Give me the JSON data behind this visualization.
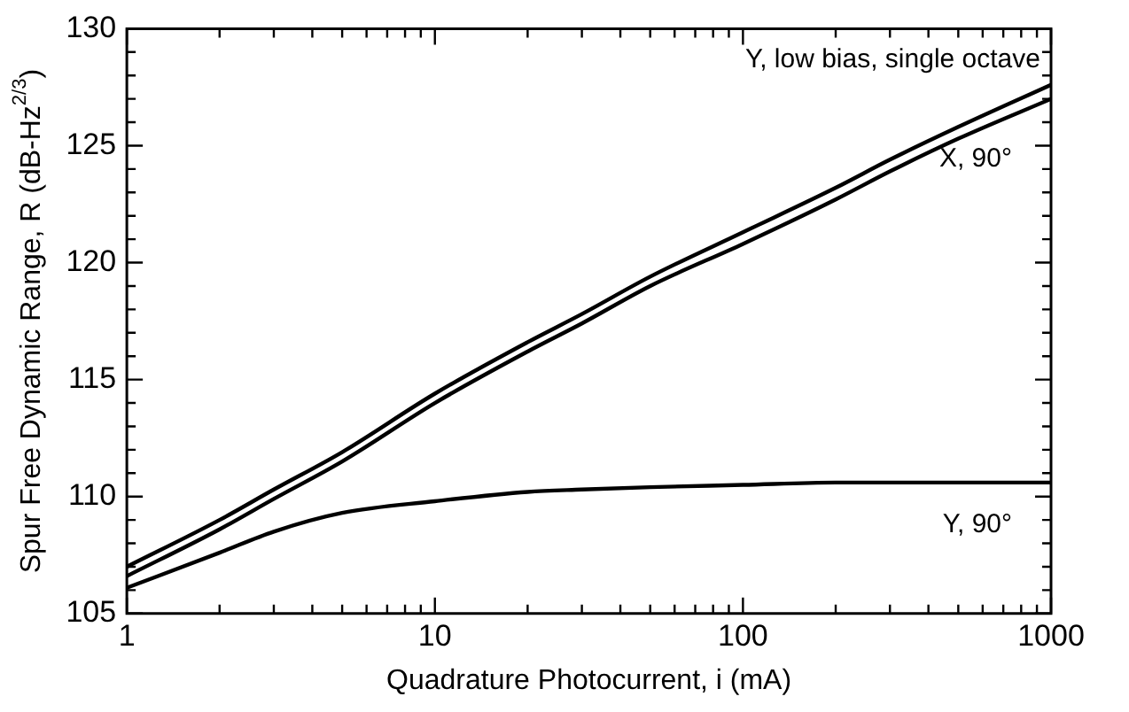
{
  "chart_data": {
    "type": "line",
    "xlabel": "Quadrature Photocurrent, i (mA)",
    "ylabel": "Spur Free Dynamic Range, R (dB-Hz$^{2/3}$)",
    "log": "x",
    "grid": false,
    "legend": "right",
    "marker": "none",
    "line_style": "solid",
    "xlim": [
      1,
      1000
    ],
    "ylim": [
      105,
      130
    ],
    "xticks": [
      1,
      {
        "value": 2,
        "label": null
      },
      {
        "value": 3,
        "label": null
      },
      {
        "value": 4,
        "label": null
      },
      {
        "value": 5,
        "label": null
      },
      {
        "value": 6,
        "label": null
      },
      {
        "value": 7,
        "label": null
      },
      {
        "value": 8,
        "label": null
      },
      {
        "value": 9,
        "label": null
      },
      10,
      {
        "value": 20,
        "label": null
      },
      {
        "value": 30,
        "label": null
      },
      {
        "value": 40,
        "label": null
      },
      {
        "value": 50,
        "label": null
      },
      {
        "value": 60,
        "label": null
      },
      {
        "value": 70,
        "label": null
      },
      {
        "value": 80,
        "label": null
      },
      {
        "value": 90,
        "label": null
      },
      100,
      {
        "value": 200,
        "label": null
      },
      {
        "value": 300,
        "label": null
      },
      {
        "value": 400,
        "label": null
      },
      {
        "value": 500,
        "label": null
      },
      {
        "value": 600,
        "label": null
      },
      {
        "value": 700,
        "label": null
      },
      {
        "value": 800,
        "label": null
      },
      {
        "value": 900,
        "label": null
      },
      1000
    ],
    "yticks": [
      105,
      {
        "value": 106,
        "label": null
      },
      {
        "value": 107,
        "label": null
      },
      {
        "value": 108,
        "label": null
      },
      {
        "value": 109,
        "label": null
      },
      110,
      {
        "value": 111,
        "label": null
      },
      {
        "value": 112,
        "label": null
      },
      {
        "value": 113,
        "label": null
      },
      {
        "value": 114,
        "label": null
      },
      115,
      {
        "value": 116,
        "label": null
      },
      {
        "value": 117,
        "label": null
      },
      {
        "value": 118,
        "label": null
      },
      {
        "value": 119,
        "label": null
      },
      120,
      {
        "value": 121,
        "label": null
      },
      {
        "value": 122,
        "label": null
      },
      {
        "value": 123,
        "label": null
      },
      {
        "value": 124,
        "label": null
      },
      125,
      {
        "value": 126,
        "label": null
      },
      {
        "value": 127,
        "label": null
      },
      {
        "value": 128,
        "label": null
      },
      {
        "value": 129,
        "label": null
      },
      130
    ],
    "x": [
      1,
      2,
      3,
      5,
      10,
      20,
      30,
      50,
      100,
      200,
      300,
      500,
      1000
    ],
    "series": [
      {
        "name": "Y, low bias, single octave",
        "color": "#000000",
        "values": [
          107.0,
          109.0,
          110.3,
          111.9,
          114.4,
          116.6,
          117.8,
          119.4,
          121.3,
          123.2,
          124.4,
          125.8,
          127.6
        ]
      },
      {
        "name": "X, 90°",
        "color": "#000000",
        "values": [
          106.6,
          108.6,
          109.9,
          111.5,
          114.0,
          116.2,
          117.4,
          119.0,
          120.8,
          122.7,
          123.9,
          125.3,
          127.0
        ]
      },
      {
        "name": "Y, 90°",
        "color": "#000000",
        "values": [
          106.1,
          107.6,
          108.5,
          109.3,
          109.8,
          110.2,
          110.3,
          110.4,
          110.5,
          110.6,
          110.6,
          110.6,
          110.6
        ]
      }
    ]
  }
}
